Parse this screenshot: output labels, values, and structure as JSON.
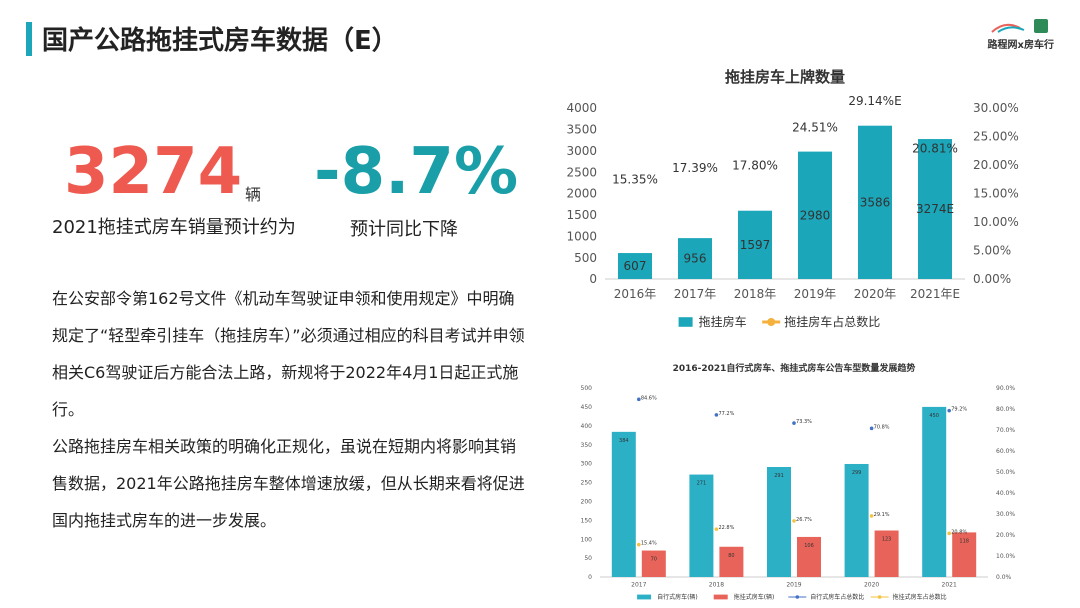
{
  "header": {
    "title": "国产公路拖挂式房车数据（E）",
    "brand": "路程网x房车行"
  },
  "stats": [
    {
      "value": "3274",
      "unit": "辆",
      "caption": "2021拖挂式房车销量预计约为"
    },
    {
      "value": "-8.7%",
      "caption": "预计同比下降"
    }
  ],
  "body": [
    "在公安部令第162号文件《机动车驾驶证申领和使用规定》中明确规定了“轻型牵引挂车（拖挂房车）”必须通过相应的科目考试并申领相关C6驾驶证后方能合法上路，新规将于2022年4月1日起正式施行。",
    "公路拖挂房车相关政策的明确化正规化，虽说在短期内将影响其销售数据，2021年公路拖挂房车整体增速放缓，但从长期来看将促进国内拖挂式房车的进一步发展。"
  ],
  "chart_data": [
    {
      "type": "bar_line",
      "title": "拖挂房车上牌数量",
      "categories": [
        "2016年",
        "2017年",
        "2018年",
        "2019年",
        "2020年",
        "2021年E"
      ],
      "series": [
        {
          "name": "拖挂房车",
          "color": "#1ba6b9",
          "values": [
            607,
            956,
            1597,
            2980,
            3586,
            3274
          ],
          "value_labels": [
            "607",
            "956",
            "1597",
            "2980",
            "3586",
            "3274E"
          ]
        },
        {
          "name": "拖挂房车占总数比",
          "color": "#f4b13c",
          "axis": "y2",
          "values": [
            15.35,
            17.39,
            17.8,
            24.51,
            29.14,
            20.81
          ],
          "value_labels": [
            "15.35%",
            "17.39%",
            "17.80%",
            "24.51%",
            "29.14%E",
            "20.81%"
          ]
        }
      ],
      "ylim": [
        0,
        4000
      ],
      "yticks": [
        0,
        500,
        1000,
        1500,
        2000,
        2500,
        3000,
        3500,
        4000
      ],
      "y2lim": [
        0,
        30
      ],
      "y2ticks": [
        {
          "value": 0,
          "label": "0.00%"
        },
        {
          "value": 5,
          "label": "5.00%"
        },
        {
          "value": 10,
          "label": "10.00%"
        },
        {
          "value": 15,
          "label": "15.00%"
        },
        {
          "value": 20,
          "label": "20.00%"
        },
        {
          "value": 25,
          "label": "25.00%"
        },
        {
          "value": 30,
          "label": "30.00%"
        }
      ],
      "legend": "bottom"
    },
    {
      "type": "bar_line",
      "title": "2016-2021自行式房车、拖挂式房车公告车型数量发展趋势",
      "categories": [
        "2017",
        "2018",
        "2019",
        "2020",
        "2021"
      ],
      "series": [
        {
          "name": "自行式房车(辆)",
          "color": "#2bb0c6",
          "values": [
            384,
            271,
            291,
            299,
            450
          ]
        },
        {
          "name": "拖挂式房车(辆)",
          "color": "#e8645a",
          "values": [
            70,
            80,
            106,
            123,
            118
          ]
        },
        {
          "name": "自行式房车占总数比",
          "color": "#4472c4",
          "axis": "y2",
          "values": [
            84.6,
            77.2,
            73.3,
            70.8,
            79.2
          ],
          "value_labels": [
            "84.6%",
            "77.2%",
            "73.3%",
            "70.8%",
            "79.2%"
          ]
        },
        {
          "name": "拖挂式房车占总数比",
          "color": "#f5c242",
          "axis": "y2",
          "values": [
            15.4,
            22.8,
            26.7,
            29.1,
            20.8
          ],
          "value_labels": [
            "15.4%",
            "22.8%",
            "26.7%",
            "29.1%",
            "20.8%"
          ]
        }
      ],
      "ylim": [
        0,
        500
      ],
      "yticks": [
        0,
        50,
        100,
        150,
        200,
        250,
        300,
        350,
        400,
        450,
        500
      ],
      "y2lim": [
        0,
        90
      ],
      "y2ticks": [
        {
          "value": 0,
          "label": "0.0%"
        },
        {
          "value": 10,
          "label": "10.0%"
        },
        {
          "value": 20,
          "label": "20.0%"
        },
        {
          "value": 30,
          "label": "30.0%"
        },
        {
          "value": 40,
          "label": "40.0%"
        },
        {
          "value": 50,
          "label": "50.0%"
        },
        {
          "value": 60,
          "label": "60.0%"
        },
        {
          "value": 70,
          "label": "70.0%"
        },
        {
          "value": 80,
          "label": "80.0%"
        },
        {
          "value": 90,
          "label": "90.0%"
        }
      ],
      "legend": "bottom"
    }
  ]
}
